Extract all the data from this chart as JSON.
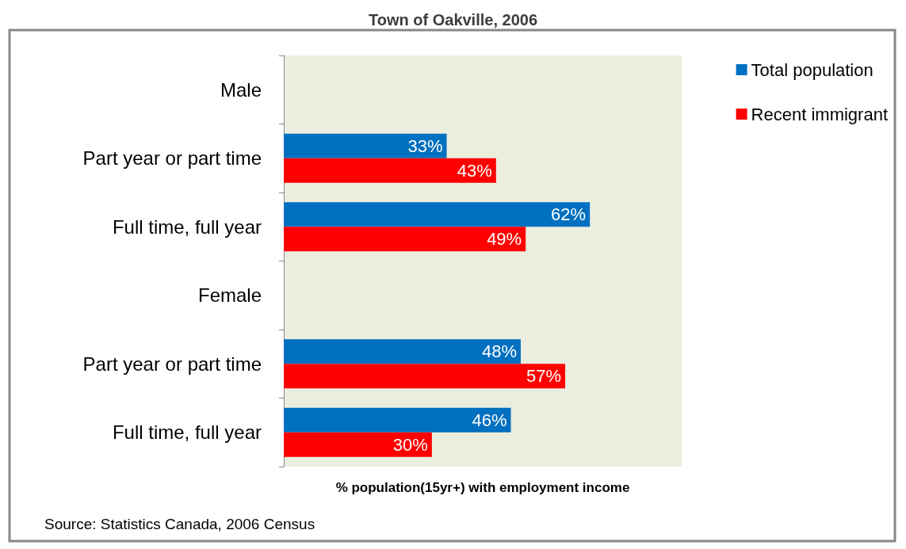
{
  "chart_data": {
    "type": "bar",
    "orientation": "horizontal",
    "title": "Town of Oakville, 2006",
    "xlabel": "% population(15yr+) with employment income",
    "categories": [
      "Male",
      "Part year or part time",
      "Full time, full year",
      "Female",
      "Part year or part time",
      "Full time, full year"
    ],
    "series": [
      {
        "name": "Total population",
        "color": "#0070c0",
        "values": [
          null,
          33,
          62,
          null,
          48,
          46
        ],
        "value_labels": [
          null,
          "33%",
          "62%",
          null,
          "48%",
          "46%"
        ]
      },
      {
        "name": "Recent immigrant",
        "color": "#ff0000",
        "values": [
          null,
          43,
          49,
          null,
          57,
          30
        ],
        "value_labels": [
          null,
          "43%",
          "49%",
          null,
          "57%",
          "30%"
        ]
      }
    ],
    "legend": "top right",
    "grid": false,
    "annotations": [
      "Source: Statistics Canada, 2006 Census"
    ]
  }
}
